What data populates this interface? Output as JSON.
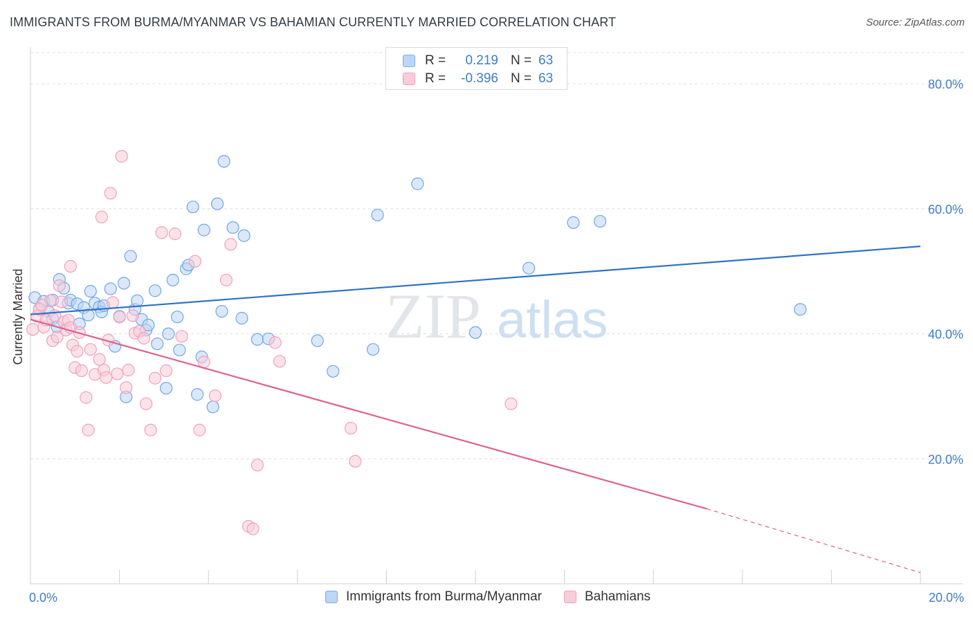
{
  "header": {
    "title": "IMMIGRANTS FROM BURMA/MYANMAR VS BAHAMIAN CURRENTLY MARRIED CORRELATION CHART",
    "source": "Source: ZipAtlas.com"
  },
  "watermark": {
    "zip": "ZIP",
    "atlas": "atlas"
  },
  "legend": {
    "rows": [
      {
        "r_label": "R =",
        "r_value": "0.219",
        "n_label": "N =",
        "n_value": "63",
        "color": "#7aaee8",
        "fill": "#bcd6f5"
      },
      {
        "r_label": "R =",
        "r_value": "-0.396",
        "n_label": "N =",
        "n_value": "63",
        "color": "#f0a0b8",
        "fill": "#f9ccd9"
      }
    ]
  },
  "bottom_legend": [
    {
      "label": "Immigrants from Burma/Myanmar",
      "color": "#7aaee8",
      "fill": "#bcd6f5"
    },
    {
      "label": "Bahamians",
      "color": "#f0a0b8",
      "fill": "#f9ccd9"
    }
  ],
  "chart_data": {
    "type": "scatter",
    "title": "IMMIGRANTS FROM BURMA/MYANMAR VS BAHAMIAN CURRENTLY MARRIED CORRELATION CHART",
    "xlabel": "",
    "ylabel": "Currently Married",
    "xlim": [
      0,
      20
    ],
    "ylim": [
      0,
      85
    ],
    "x_tick_labels": [
      "0.0%",
      "20.0%"
    ],
    "y_ticks": [
      20,
      40,
      60,
      80
    ],
    "y_tick_labels": [
      "20.0%",
      "40.0%",
      "60.0%",
      "80.0%"
    ],
    "grid": "horizontal dashed",
    "legend_position": "top-center",
    "series": [
      {
        "name": "Immigrants from Burma/Myanmar",
        "color": "#6fa6e6",
        "fill": "#bcd6f5",
        "trend": {
          "x": [
            0,
            20
          ],
          "y": [
            43.1,
            54.0
          ],
          "color": "#2d72c8"
        },
        "points": [
          [
            0.1,
            45.8
          ],
          [
            0.3,
            45.2
          ],
          [
            0.4,
            43.6
          ],
          [
            0.5,
            45.4
          ],
          [
            0.5,
            42.4
          ],
          [
            0.6,
            41.1
          ],
          [
            0.65,
            48.7
          ],
          [
            0.75,
            47.3
          ],
          [
            0.85,
            44.9
          ],
          [
            0.9,
            45.4
          ],
          [
            1.05,
            44.8
          ],
          [
            1.1,
            41.6
          ],
          [
            1.2,
            44.2
          ],
          [
            1.3,
            43.0
          ],
          [
            1.35,
            46.8
          ],
          [
            1.45,
            44.9
          ],
          [
            1.55,
            44.3
          ],
          [
            1.6,
            43.5
          ],
          [
            1.65,
            44.5
          ],
          [
            1.8,
            47.2
          ],
          [
            1.9,
            38.0
          ],
          [
            2.0,
            42.8
          ],
          [
            2.1,
            48.1
          ],
          [
            2.15,
            29.9
          ],
          [
            2.25,
            52.4
          ],
          [
            2.35,
            43.9
          ],
          [
            2.4,
            45.3
          ],
          [
            2.5,
            42.3
          ],
          [
            2.6,
            40.6
          ],
          [
            2.65,
            41.4
          ],
          [
            2.8,
            46.9
          ],
          [
            2.85,
            38.4
          ],
          [
            3.05,
            31.3
          ],
          [
            3.1,
            40.0
          ],
          [
            3.2,
            48.6
          ],
          [
            3.3,
            42.7
          ],
          [
            3.35,
            37.4
          ],
          [
            3.5,
            50.4
          ],
          [
            3.55,
            51.0
          ],
          [
            3.65,
            60.3
          ],
          [
            3.75,
            30.3
          ],
          [
            3.85,
            36.3
          ],
          [
            3.9,
            56.6
          ],
          [
            4.1,
            28.3
          ],
          [
            4.2,
            60.8
          ],
          [
            4.3,
            43.6
          ],
          [
            4.35,
            67.6
          ],
          [
            4.55,
            57.0
          ],
          [
            4.75,
            42.5
          ],
          [
            4.8,
            55.7
          ],
          [
            5.1,
            39.1
          ],
          [
            5.35,
            39.2
          ],
          [
            6.45,
            38.9
          ],
          [
            6.8,
            34.0
          ],
          [
            7.7,
            37.5
          ],
          [
            7.8,
            59.0
          ],
          [
            8.7,
            64.0
          ],
          [
            10.0,
            40.2
          ],
          [
            11.2,
            50.5
          ],
          [
            12.2,
            57.8
          ],
          [
            12.8,
            58.0
          ],
          [
            17.3,
            43.9
          ],
          [
            0.2,
            44.0
          ]
        ]
      },
      {
        "name": "Bahamians",
        "color": "#f0a0b8",
        "fill": "#f9ccd9",
        "trend": {
          "x": [
            0,
            15.2
          ],
          "y": [
            42.3,
            12.0
          ],
          "color": "#e0608d",
          "dashed_extension": {
            "x": [
              15.2,
              20
            ],
            "y": [
              12.0,
              1.8
            ]
          }
        },
        "points": [
          [
            0.05,
            40.7
          ],
          [
            0.15,
            42.8
          ],
          [
            0.2,
            43.9
          ],
          [
            0.3,
            41.1
          ],
          [
            0.35,
            42.2
          ],
          [
            0.45,
            45.3
          ],
          [
            0.5,
            38.9
          ],
          [
            0.55,
            42.9
          ],
          [
            0.65,
            47.7
          ],
          [
            0.7,
            45.1
          ],
          [
            0.75,
            41.9
          ],
          [
            0.8,
            40.6
          ],
          [
            0.85,
            42.2
          ],
          [
            0.9,
            41.0
          ],
          [
            0.9,
            50.8
          ],
          [
            0.95,
            38.2
          ],
          [
            1.0,
            34.6
          ],
          [
            1.05,
            37.2
          ],
          [
            1.1,
            40.2
          ],
          [
            1.15,
            34.1
          ],
          [
            1.25,
            29.8
          ],
          [
            1.3,
            24.6
          ],
          [
            1.35,
            37.5
          ],
          [
            1.45,
            33.5
          ],
          [
            1.55,
            35.9
          ],
          [
            1.6,
            58.7
          ],
          [
            1.65,
            34.2
          ],
          [
            1.75,
            39.0
          ],
          [
            1.8,
            62.5
          ],
          [
            1.85,
            45.0
          ],
          [
            1.95,
            33.6
          ],
          [
            2.0,
            42.7
          ],
          [
            2.05,
            68.4
          ],
          [
            2.15,
            31.4
          ],
          [
            2.2,
            34.2
          ],
          [
            2.35,
            40.1
          ],
          [
            2.45,
            40.4
          ],
          [
            2.55,
            39.3
          ],
          [
            2.6,
            28.8
          ],
          [
            2.7,
            24.6
          ],
          [
            2.8,
            32.9
          ],
          [
            2.95,
            56.2
          ],
          [
            3.05,
            34.1
          ],
          [
            3.25,
            56.0
          ],
          [
            3.4,
            39.6
          ],
          [
            3.7,
            51.6
          ],
          [
            3.8,
            24.6
          ],
          [
            3.9,
            35.5
          ],
          [
            4.15,
            30.1
          ],
          [
            4.4,
            48.6
          ],
          [
            4.5,
            54.3
          ],
          [
            4.9,
            9.2
          ],
          [
            5.0,
            8.8
          ],
          [
            5.1,
            19.0
          ],
          [
            5.5,
            38.6
          ],
          [
            5.6,
            35.6
          ],
          [
            7.2,
            24.9
          ],
          [
            7.3,
            19.6
          ],
          [
            10.8,
            28.8
          ],
          [
            0.25,
            44.6
          ],
          [
            1.7,
            33.0
          ],
          [
            2.3,
            42.9
          ],
          [
            0.6,
            39.5
          ]
        ]
      }
    ]
  }
}
